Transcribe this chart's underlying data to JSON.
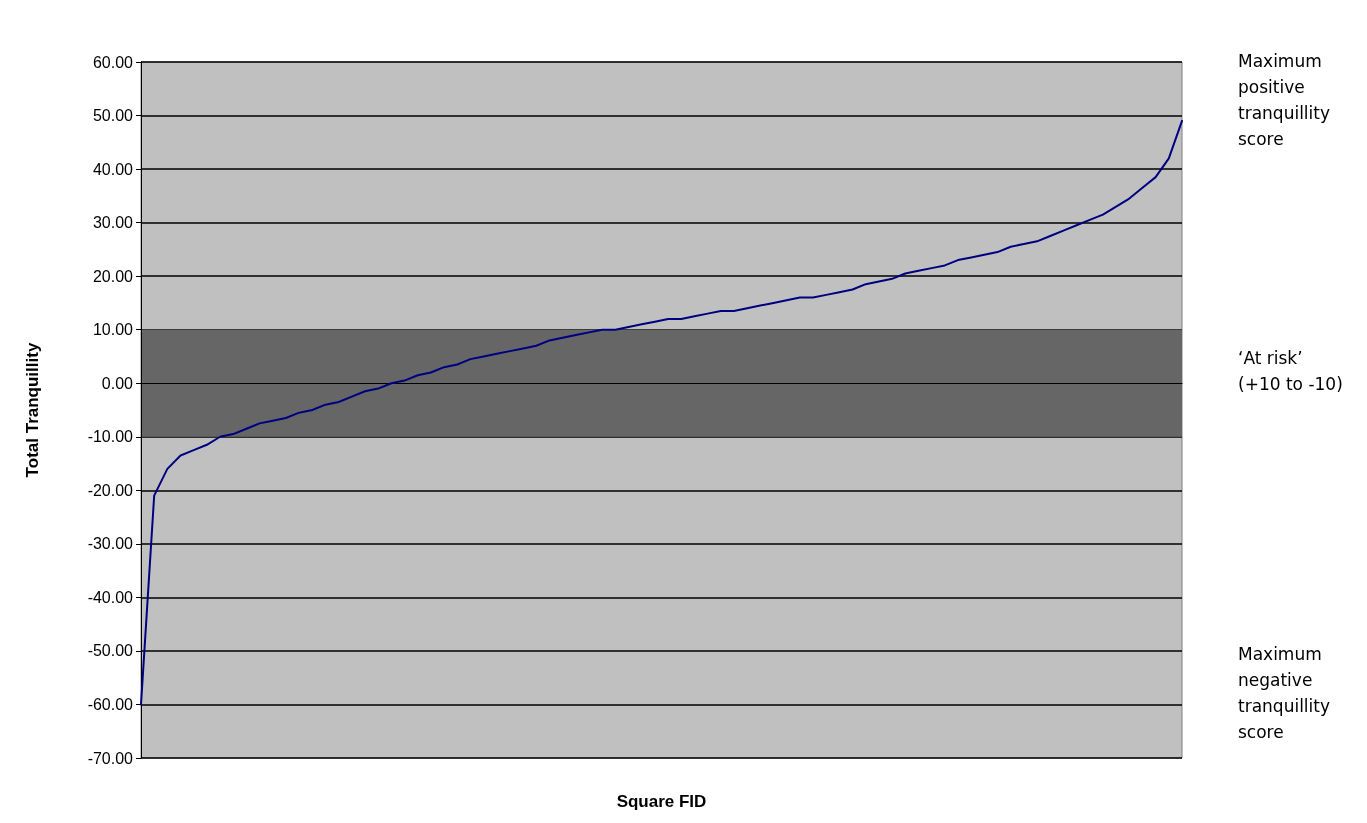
{
  "chart_data": {
    "type": "line",
    "xlabel": "Square FID",
    "ylabel": "Total Tranquillity",
    "categories": [
      null,
      null,
      null,
      null,
      null,
      null,
      null,
      null,
      null,
      null,
      null,
      null,
      null,
      null,
      null,
      null,
      null,
      null,
      null,
      null,
      null,
      null,
      null,
      null,
      null,
      null,
      null,
      null,
      null,
      null,
      null,
      null,
      null,
      null,
      null,
      null,
      null,
      null,
      null,
      null,
      null,
      null,
      null,
      null,
      null,
      null,
      null,
      null,
      null,
      null,
      null,
      null,
      null,
      null,
      null,
      null,
      null,
      null,
      null,
      null,
      null,
      null,
      null,
      null,
      null,
      null,
      null,
      null,
      null,
      null,
      null,
      null,
      null,
      null,
      null,
      null,
      null,
      null,
      null,
      null
    ],
    "series": [
      {
        "color": "#000080",
        "values": [
          -60,
          -21,
          -16,
          -13.5,
          -12.5,
          -11.5,
          -10,
          -9.5,
          -8.5,
          -7.5,
          -7,
          -6.5,
          -5.5,
          -5,
          -4,
          -3.5,
          -2.5,
          -1.5,
          -1,
          0,
          0.5,
          1.5,
          2,
          3,
          3.5,
          4.5,
          5,
          5.5,
          6,
          6.5,
          7,
          8,
          8.5,
          9,
          9.5,
          10,
          10,
          10.5,
          11,
          11.5,
          12,
          12,
          12.5,
          13,
          13.5,
          13.5,
          14,
          14.5,
          15,
          15.5,
          16,
          16,
          16.5,
          17,
          17.5,
          18.5,
          19,
          19.5,
          20.5,
          21,
          21.5,
          22,
          23,
          23.5,
          24,
          24.5,
          25.5,
          26,
          26.5,
          27.5,
          28.5,
          29.5,
          30.5,
          31.5,
          33,
          34.5,
          36.5,
          38.5,
          42,
          49
        ]
      }
    ],
    "ylim": [
      -70,
      60
    ],
    "yticks": [
      {
        "value": -70,
        "label": "-70.00"
      },
      {
        "value": -60,
        "label": "-60.00"
      },
      {
        "value": -50,
        "label": "-50.00"
      },
      {
        "value": -40,
        "label": "-40.00"
      },
      {
        "value": -30,
        "label": "-30.00"
      },
      {
        "value": -20,
        "label": "-20.00"
      },
      {
        "value": -10,
        "label": "-10.00"
      },
      {
        "value": 0,
        "label": "0.00"
      },
      {
        "value": 10,
        "label": "10.00"
      },
      {
        "value": 20,
        "label": "20.00"
      },
      {
        "value": 30,
        "label": "30.00"
      },
      {
        "value": 40,
        "label": "40.00"
      },
      {
        "value": 50,
        "label": "50.00"
      },
      {
        "value": 60,
        "label": "60.00"
      }
    ],
    "grid": "y",
    "marker": "none",
    "line_style": "solid",
    "bands": [
      {
        "axis": "y",
        "from": -10,
        "to": 10,
        "color": "#666666"
      }
    ],
    "annotations": [
      "Maximum positive tranquillity score",
      "‘At risk’ (+10 to -10)",
      "Maximum negative tranquillity score"
    ]
  }
}
